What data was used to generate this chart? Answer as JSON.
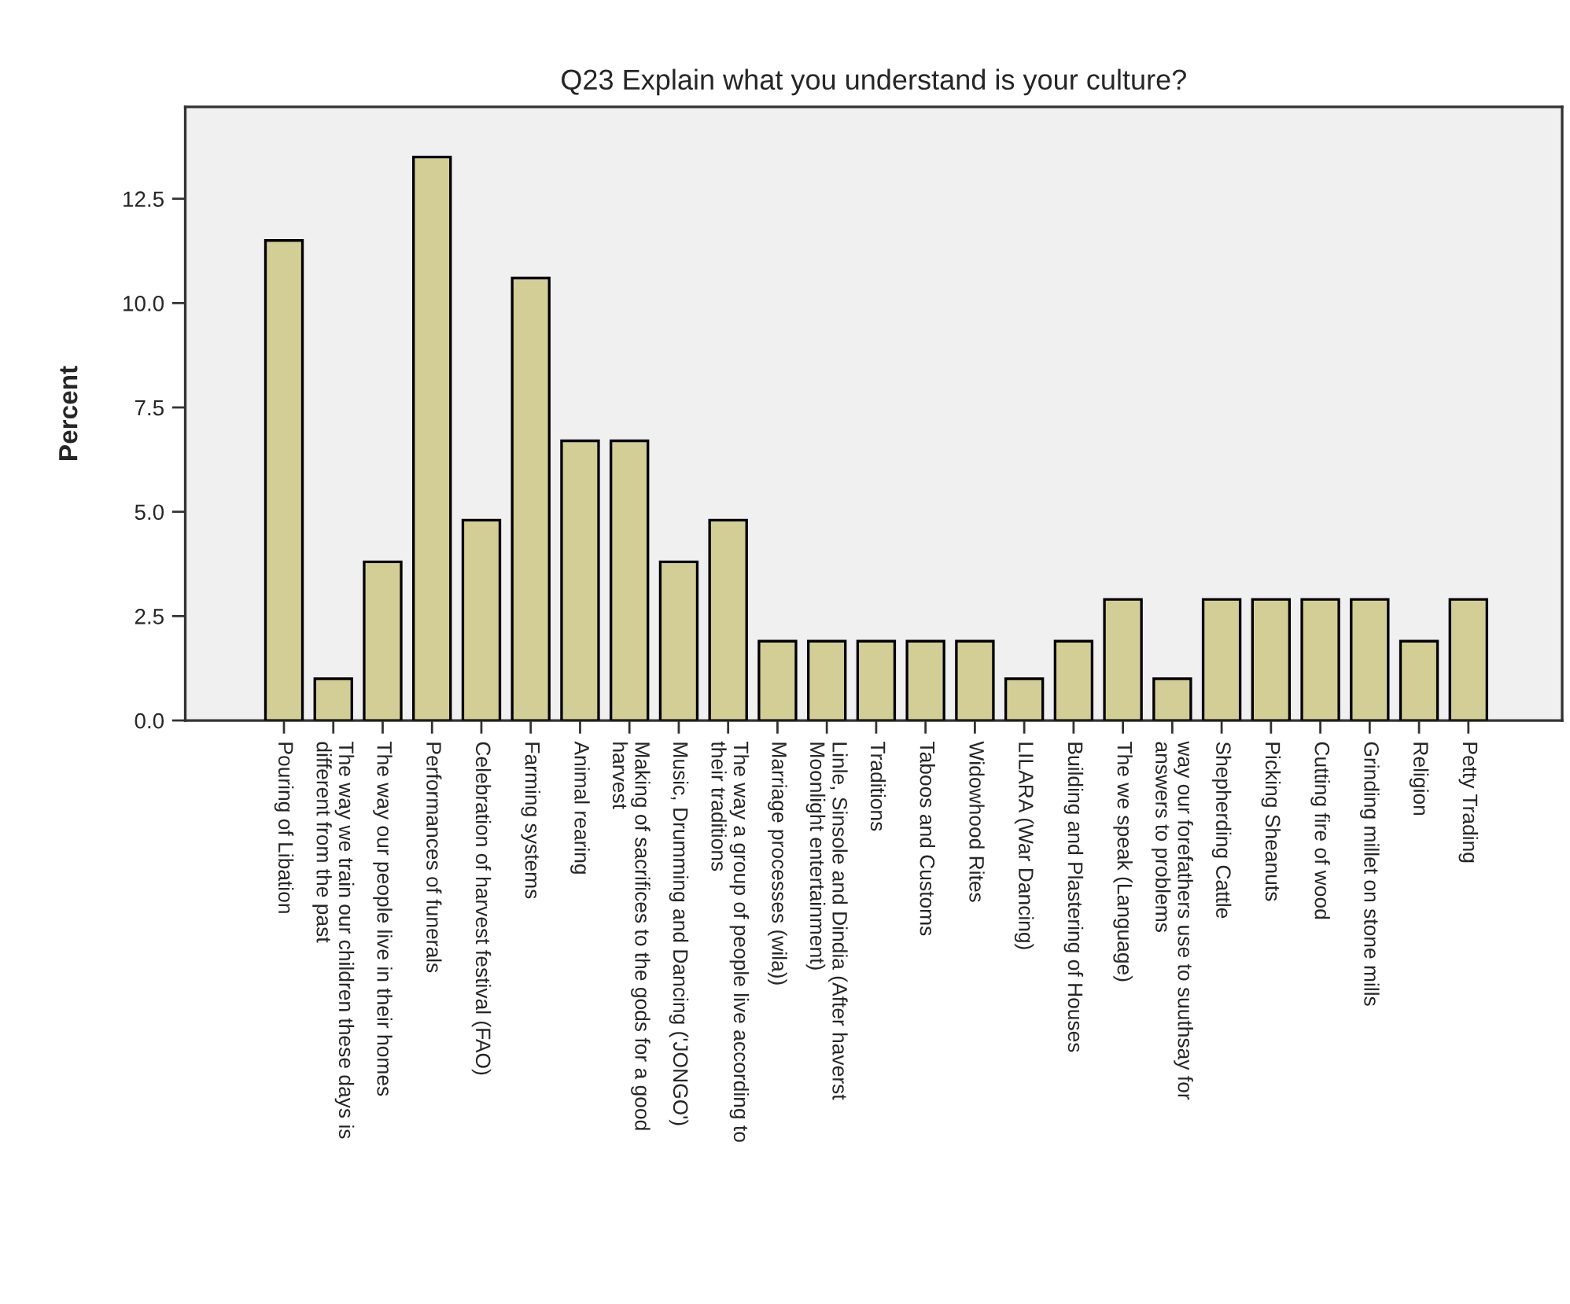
{
  "chart_data": {
    "type": "bar",
    "title": "Q23 Explain what you understand is your culture?",
    "ylabel": "Percent",
    "categories": [
      "Pouring of Libation",
      "The way we train our children these days is different from the past",
      "The way our people live in their homes",
      "Performances of funerals",
      "Celebration of harvest festival (FAO)",
      "Farming systems",
      "Animal rearing",
      "Making of sacrifices to the gods for a good harvest",
      "Music, Drumming and Dancing ('JONGO')",
      "The way a group of people live according to their traditions",
      "Marriage processes (wila))",
      "Linle, Sinsole and Dindia (After haverst Moonlight entertainment)",
      "Traditions",
      "Taboos and Customs",
      "Widowhood Rites",
      "LILARA (War Dancing)",
      "Building and Plastering of Houses",
      "The we speak (Language)",
      "way our forefathers use to suuthsay for answers to problems",
      "Shepherding Cattle",
      "Picking Sheanuts",
      "Cutting fire of wood",
      "Grinding millet on stone mills",
      "Religion",
      "Petty Trading"
    ],
    "values": [
      11.5,
      1.0,
      3.8,
      13.5,
      4.8,
      10.6,
      6.7,
      6.7,
      3.8,
      4.8,
      1.9,
      1.9,
      1.9,
      1.9,
      1.9,
      1.0,
      1.9,
      2.9,
      1.0,
      2.9,
      2.9,
      2.9,
      2.9,
      1.9,
      2.9
    ],
    "color": "#d3ce96",
    "ylim": [
      0,
      14.7
    ],
    "yticks": [
      {
        "value": 0,
        "label": "0.0"
      },
      {
        "value": 2.5,
        "label": "2.5"
      },
      {
        "value": 5,
        "label": "5.0"
      },
      {
        "value": 7.5,
        "label": "7.5"
      },
      {
        "value": 10,
        "label": "10.0"
      },
      {
        "value": 12.5,
        "label": "12.5"
      }
    ],
    "grid": false,
    "legend": false
  }
}
